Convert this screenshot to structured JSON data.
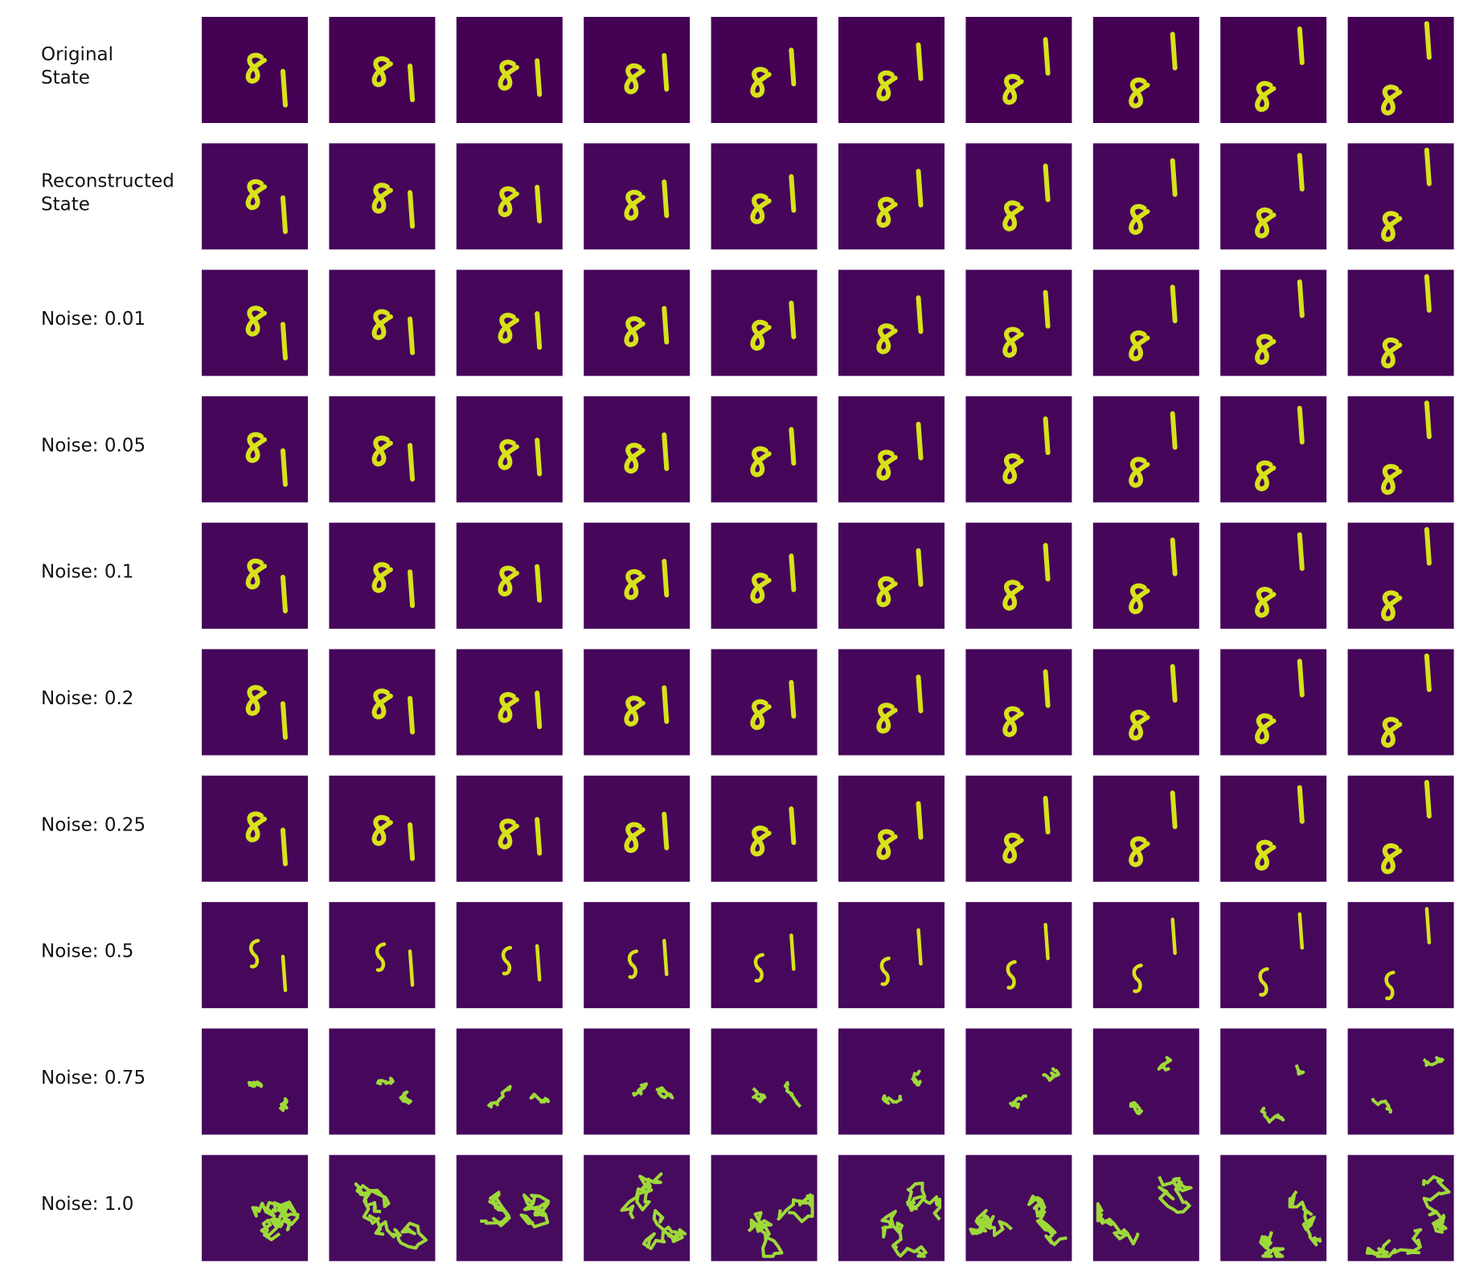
{
  "rows": [
    {
      "label_lines": [
        "Original",
        "State"
      ]
    },
    {
      "label_lines": [
        "Reconstructed",
        "State"
      ]
    },
    {
      "label_lines": [
        "Noise: 0.01"
      ]
    },
    {
      "label_lines": [
        "Noise: 0.05"
      ]
    },
    {
      "label_lines": [
        "Noise: 0.1"
      ]
    },
    {
      "label_lines": [
        "Noise: 0.2"
      ]
    },
    {
      "label_lines": [
        "Noise: 0.25"
      ]
    },
    {
      "label_lines": [
        "Noise: 0.5"
      ]
    },
    {
      "label_lines": [
        "Noise: 0.75"
      ]
    },
    {
      "label_lines": [
        "Noise: 1.0"
      ]
    }
  ]
}
